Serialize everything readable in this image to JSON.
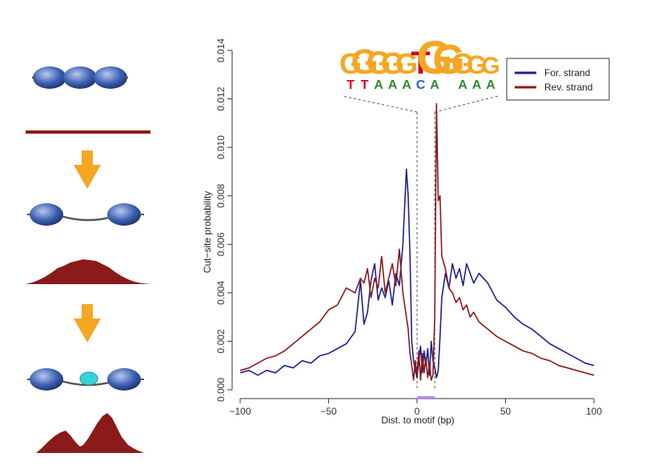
{
  "chart_data": {
    "type": "line",
    "title": "",
    "xlabel": "Dist. to motif (bp)",
    "ylabel": "Cut−site probability",
    "xlim": [
      -100,
      100
    ],
    "ylim": [
      0,
      0.014
    ],
    "x_ticks": [
      -100,
      -50,
      0,
      50,
      100
    ],
    "x_tick_labels": [
      "−100",
      "−50",
      "0",
      "50",
      "100"
    ],
    "y_ticks": [
      0,
      0.002,
      0.004,
      0.006,
      0.008,
      0.01,
      0.012,
      0.014
    ],
    "y_tick_labels": [
      "0.000",
      "0.002",
      "0.004",
      "0.006",
      "0.008",
      "0.010",
      "0.012",
      "0.014"
    ],
    "motif_region": [
      0,
      10
    ],
    "grid": false,
    "legend": "top-right",
    "series": [
      {
        "name": "For. strand",
        "color": "#1f1f8f",
        "x": [
          -100,
          -95,
          -90,
          -85,
          -80,
          -75,
          -70,
          -65,
          -60,
          -55,
          -50,
          -45,
          -40,
          -35,
          -32,
          -30,
          -28,
          -26,
          -24,
          -22,
          -20,
          -18,
          -16,
          -14,
          -12,
          -10,
          -8,
          -6,
          -5,
          -4,
          -3,
          -2,
          -1,
          0,
          1,
          2,
          3,
          4,
          5,
          6,
          7,
          8,
          9,
          10,
          11,
          12,
          13,
          14,
          16,
          18,
          20,
          22,
          24,
          26,
          28,
          30,
          32,
          35,
          40,
          45,
          50,
          55,
          60,
          65,
          70,
          75,
          80,
          85,
          90,
          95,
          100
        ],
        "values": [
          0.0007,
          0.0008,
          0.0006,
          0.0008,
          0.0007,
          0.001,
          0.0009,
          0.0012,
          0.0011,
          0.0014,
          0.0015,
          0.0017,
          0.0019,
          0.0024,
          0.0045,
          0.0027,
          0.0032,
          0.0045,
          0.0052,
          0.0037,
          0.0042,
          0.0038,
          0.0045,
          0.0035,
          0.0048,
          0.0043,
          0.006,
          0.0091,
          0.008,
          0.0055,
          0.002,
          0.0012,
          0.0008,
          0.0005,
          0.0012,
          0.0018,
          0.0007,
          0.0016,
          0.001,
          0.0017,
          0.0006,
          0.002,
          0.0012,
          0.0009,
          0.0005,
          0.0008,
          0.0022,
          0.0038,
          0.0048,
          0.0042,
          0.0052,
          0.0046,
          0.005,
          0.0043,
          0.0052,
          0.0048,
          0.0044,
          0.0048,
          0.0044,
          0.0037,
          0.0034,
          0.003,
          0.0027,
          0.0025,
          0.0022,
          0.0019,
          0.0017,
          0.0015,
          0.0013,
          0.0011,
          0.001
        ]
      },
      {
        "name": "Rev. strand",
        "color": "#8b1a1a",
        "x": [
          -100,
          -95,
          -90,
          -85,
          -80,
          -75,
          -70,
          -65,
          -60,
          -55,
          -50,
          -45,
          -40,
          -35,
          -32,
          -30,
          -28,
          -26,
          -24,
          -22,
          -20,
          -18,
          -16,
          -14,
          -12,
          -10,
          -8,
          -6,
          -5,
          -4,
          -3,
          -2,
          -1,
          0,
          1,
          2,
          3,
          4,
          5,
          6,
          7,
          8,
          9,
          10,
          11,
          12,
          13,
          14,
          16,
          18,
          20,
          22,
          24,
          26,
          28,
          30,
          32,
          35,
          40,
          45,
          50,
          55,
          60,
          65,
          70,
          75,
          80,
          85,
          90,
          95,
          100
        ],
        "values": [
          0.0008,
          0.0009,
          0.0011,
          0.0013,
          0.0014,
          0.0016,
          0.0019,
          0.0022,
          0.0025,
          0.0028,
          0.0033,
          0.0035,
          0.0042,
          0.004,
          0.0046,
          0.0044,
          0.005,
          0.0038,
          0.0046,
          0.0042,
          0.0055,
          0.004,
          0.0046,
          0.0052,
          0.0043,
          0.0058,
          0.004,
          0.003,
          0.0025,
          0.0015,
          0.001,
          0.0004,
          0.0012,
          0.0006,
          0.0016,
          0.0004,
          0.0015,
          0.0007,
          0.0013,
          0.0005,
          0.0011,
          0.0004,
          0.0006,
          0.003,
          0.0118,
          0.0078,
          0.008,
          0.0055,
          0.005,
          0.0042,
          0.004,
          0.0036,
          0.0038,
          0.0033,
          0.0035,
          0.003,
          0.0032,
          0.0028,
          0.0025,
          0.0022,
          0.002,
          0.0018,
          0.0016,
          0.0015,
          0.0013,
          0.0012,
          0.001,
          0.0009,
          0.0008,
          0.0007,
          0.0006
        ]
      }
    ]
  },
  "motif_logo": {
    "top_letters": [
      "G",
      "G",
      "G",
      "G",
      "G",
      "T",
      "G",
      "G",
      "G",
      "G",
      "G"
    ],
    "bottom_letters": [
      "T",
      "T",
      "A",
      "A",
      "A",
      "C",
      "A",
      "",
      "A",
      "A",
      "A"
    ],
    "colors": {
      "G": "#f5a623",
      "T": "#d0021b",
      "A": "#2e8b2e",
      "C": "#1f5fd0"
    }
  },
  "left_panel": {
    "nucleosome_color": "#3a5fb0",
    "profile_color": "#8b1a1a",
    "arrow_color": "#f5a623",
    "factor_color": "#33d6d6"
  }
}
